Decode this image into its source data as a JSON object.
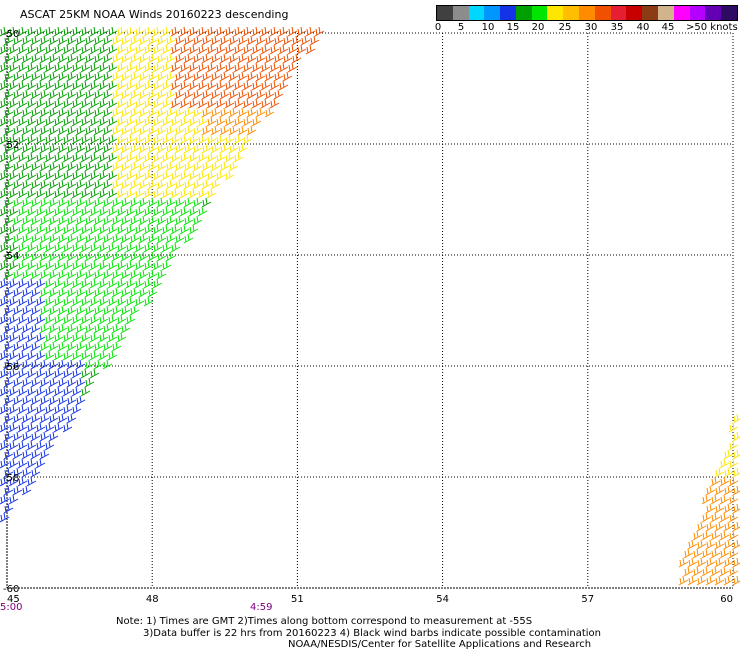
{
  "title": "ASCAT 25KM NOAA Winds 20160223 descending",
  "legend": {
    "colors": [
      "#404040",
      "#8c8c8c",
      "#00d7ff",
      "#0096ff",
      "#1432e6",
      "#00a000",
      "#00e600",
      "#ffe600",
      "#ffbe00",
      "#ff8c00",
      "#f05000",
      "#e61e32",
      "#c80000",
      "#8c3c14",
      "#d2b48c",
      "#ff00ff",
      "#b400ff",
      "#6400b4",
      "#2d0a64"
    ],
    "ticks": [
      "0",
      "5",
      "10",
      "15",
      "20",
      "25",
      "30",
      "35",
      "40",
      "45",
      ">50 knots"
    ]
  },
  "map": {
    "lon_labels": [
      "45",
      "48",
      "51",
      "54",
      "57",
      "60"
    ],
    "lat_labels": [
      "-50",
      "-52",
      "-54",
      "-56",
      "-58",
      "-60"
    ],
    "lon_range": [
      45,
      60
    ],
    "lat_range": [
      -60,
      -50
    ],
    "grid": "dotted"
  },
  "time_labels": [
    "5:00",
    "4:59"
  ],
  "notes": {
    "line1": "Note: 1) Times are GMT 2)Times along bottom correspond to measurement at -55S",
    "line2": "3)Data buffer is 22 hrs from 20160223 4) Black wind barbs indicate possible contamination",
    "line3": "NOAA/NESDIS/Center for Satellite Applications and Research"
  },
  "wind_colors": {
    "blue": "#1432e6",
    "dark_green": "#00a000",
    "light_green": "#00e600",
    "yellow": "#ffe600",
    "orange": "#ff8c00",
    "red_orange": "#f05000"
  }
}
